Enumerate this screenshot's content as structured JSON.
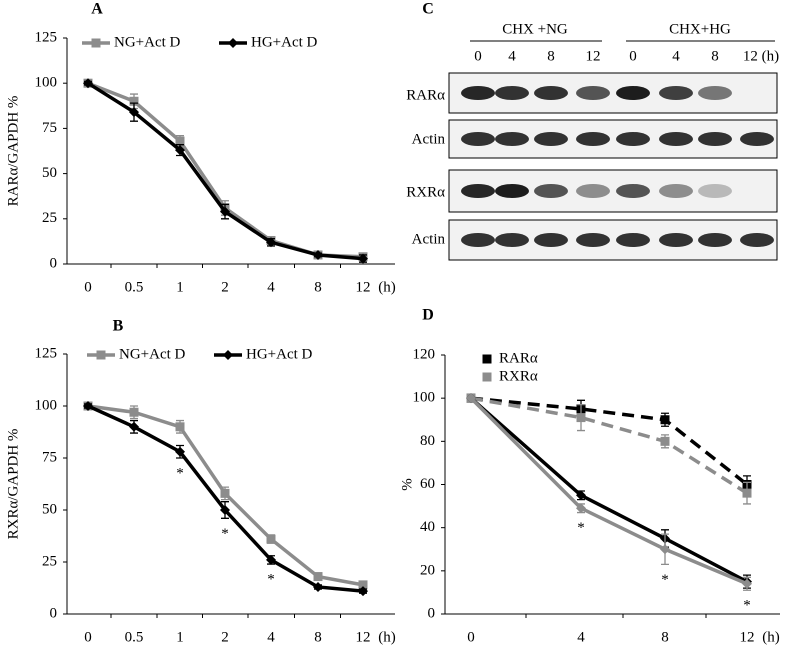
{
  "chart_data": [
    {
      "type": "line",
      "title": "A",
      "ylabel": "RARα/GAPDH %",
      "categories": [
        "0",
        "0.5",
        "1",
        "2",
        "4",
        "8",
        "12"
      ],
      "xunit": "(h)",
      "ylim": [
        0,
        125
      ],
      "yticks": [
        0,
        25,
        50,
        75,
        100,
        125
      ],
      "series": [
        {
          "name": "NG+Act D",
          "color": "#8c8c8c",
          "marker": "square",
          "dash": false,
          "values": [
            100,
            90,
            68,
            31,
            13,
            5,
            4
          ],
          "errors": [
            1,
            4,
            3,
            4,
            2,
            1,
            2
          ]
        },
        {
          "name": "HG+Act D",
          "color": "#000000",
          "marker": "diamond",
          "dash": false,
          "values": [
            100,
            84,
            63,
            29,
            12,
            5,
            3
          ],
          "errors": [
            1,
            5,
            3,
            4,
            2,
            1,
            2
          ]
        }
      ]
    },
    {
      "type": "line",
      "title": "B",
      "ylabel": "RXRα/GAPDH %",
      "categories": [
        "0",
        "0.5",
        "1",
        "2",
        "4",
        "8",
        "12"
      ],
      "xunit": "(h)",
      "ylim": [
        0,
        125
      ],
      "yticks": [
        0,
        25,
        50,
        75,
        100,
        125
      ],
      "series": [
        {
          "name": "NG+Act D",
          "color": "#8c8c8c",
          "marker": "square",
          "dash": false,
          "values": [
            100,
            97,
            90,
            58,
            36,
            18,
            14
          ],
          "errors": [
            1,
            3,
            3,
            3,
            2,
            1,
            1
          ]
        },
        {
          "name": "HG+Act D",
          "color": "#000000",
          "marker": "diamond",
          "dash": false,
          "values": [
            100,
            90,
            78,
            50,
            26,
            13,
            11
          ],
          "errors": [
            1,
            3,
            3,
            4,
            2,
            1,
            1
          ]
        }
      ],
      "annotations": [
        {
          "text": "*",
          "x": "1"
        },
        {
          "text": "*",
          "x": "2"
        },
        {
          "text": "*",
          "x": "4"
        }
      ]
    },
    {
      "type": "line",
      "title": "D",
      "ylabel": "%",
      "categories": [
        "0",
        "4",
        "8",
        "12"
      ],
      "xunit": "(h)",
      "ylim": [
        0,
        120
      ],
      "yticks": [
        0,
        20,
        40,
        60,
        80,
        100,
        120
      ],
      "series": [
        {
          "name": "RARα",
          "color": "#000000",
          "marker": "square",
          "dash": true,
          "values": [
            100,
            95,
            90,
            60
          ],
          "errors": [
            0,
            4,
            3,
            4
          ]
        },
        {
          "name": "RXRα",
          "color": "#8c8c8c",
          "marker": "square",
          "dash": true,
          "values": [
            100,
            91,
            80,
            56
          ],
          "errors": [
            0,
            6,
            3,
            5
          ]
        },
        {
          "color": "#000000",
          "marker": "diamond",
          "dash": false,
          "values": [
            100,
            55,
            35,
            15
          ],
          "errors": [
            0,
            2,
            4,
            3
          ]
        },
        {
          "color": "#8c8c8c",
          "marker": "diamond",
          "dash": false,
          "values": [
            100,
            49,
            30,
            14
          ],
          "errors": [
            0,
            2,
            7,
            3
          ]
        }
      ],
      "annotations": [
        {
          "text": "*",
          "x": "4"
        },
        {
          "text": "*",
          "x": "8"
        },
        {
          "text": "*",
          "x": "12"
        }
      ]
    }
  ],
  "blot": {
    "title": "C",
    "groups": [
      "CHX +NG",
      "CHX+HG"
    ],
    "lanes": [
      "0",
      "4",
      "8",
      "12",
      "0",
      "4",
      "8",
      "12 (h)"
    ],
    "rows": [
      "RARα",
      "Actin",
      "RXRα",
      "Actin"
    ]
  }
}
